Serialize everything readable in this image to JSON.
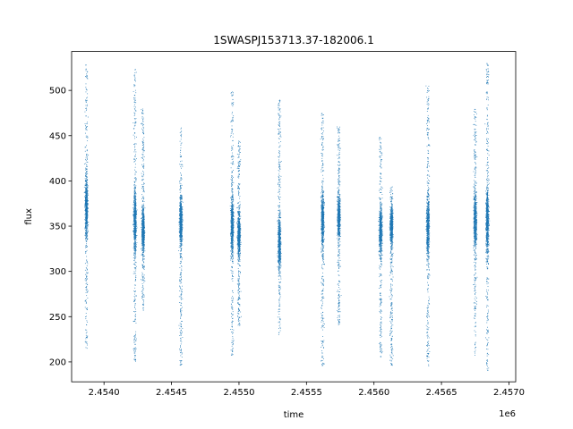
{
  "chart_data": {
    "type": "scatter",
    "title": "1SWASPJ153713.37-182006.1",
    "xlabel": "time",
    "ylabel": "flux",
    "x_offset_label": "1e6",
    "xlim": [
      2453760,
      2457050
    ],
    "ylim": [
      178,
      543
    ],
    "x_ticks": [
      2.454,
      2.4545,
      2.455,
      2.4555,
      2.456,
      2.4565,
      2.457
    ],
    "x_tick_labels": [
      "2.4540",
      "2.4545",
      "2.4550",
      "2.4555",
      "2.4560",
      "2.4565",
      "2.4570"
    ],
    "y_ticks": [
      200,
      250,
      300,
      350,
      400,
      450,
      500
    ],
    "y_tick_labels": [
      "200",
      "250",
      "300",
      "350",
      "400",
      "450",
      "500"
    ],
    "grid": false,
    "marker_color": "#1f77b4",
    "series": [
      {
        "clusters": [
          {
            "x": 2453870,
            "y_center": 370,
            "y_low": 215,
            "y_high": 530
          },
          {
            "x": 2454230,
            "y_center": 355,
            "y_low": 200,
            "y_high": 525
          },
          {
            "x": 2454290,
            "y_center": 345,
            "y_low": 255,
            "y_high": 480
          },
          {
            "x": 2454570,
            "y_center": 355,
            "y_low": 195,
            "y_high": 460
          },
          {
            "x": 2454950,
            "y_center": 350,
            "y_low": 205,
            "y_high": 500
          },
          {
            "x": 2455000,
            "y_center": 340,
            "y_low": 240,
            "y_high": 445
          },
          {
            "x": 2455300,
            "y_center": 330,
            "y_low": 230,
            "y_high": 490
          },
          {
            "x": 2455620,
            "y_center": 355,
            "y_low": 195,
            "y_high": 475
          },
          {
            "x": 2455740,
            "y_center": 360,
            "y_low": 240,
            "y_high": 460
          },
          {
            "x": 2456050,
            "y_center": 345,
            "y_low": 205,
            "y_high": 450
          },
          {
            "x": 2456130,
            "y_center": 350,
            "y_low": 195,
            "y_high": 395
          },
          {
            "x": 2456400,
            "y_center": 350,
            "y_low": 195,
            "y_high": 505
          },
          {
            "x": 2456750,
            "y_center": 355,
            "y_low": 205,
            "y_high": 480
          },
          {
            "x": 2456840,
            "y_center": 355,
            "y_low": 190,
            "y_high": 530
          }
        ]
      }
    ]
  }
}
